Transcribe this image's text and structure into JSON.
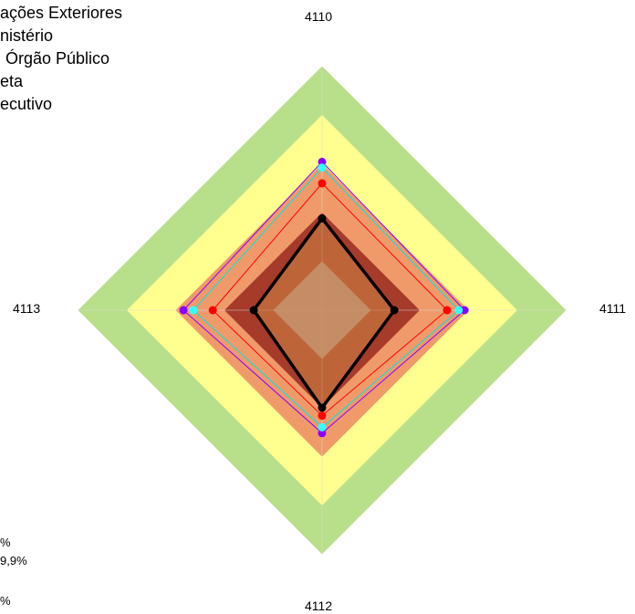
{
  "legend": [
    "ações Exteriores",
    "nistério",
    "Órgão Público",
    "eta",
    "ecutivo"
  ],
  "bottom_left_notes": [
    "%",
    "9,9%",
    "%"
  ],
  "chart_data": {
    "type": "radar",
    "axes": [
      "4110",
      "4111",
      "4112",
      "4113"
    ],
    "range": [
      0,
      100
    ],
    "bands": [
      {
        "upper": 25,
        "color": "#c0c0c0"
      },
      {
        "upper": 50,
        "color": "#a63b2a"
      },
      {
        "upper": 75,
        "color": "#f09a6a"
      },
      {
        "upper": 100,
        "color": "#ffff8f"
      },
      {
        "upper": 125,
        "color": "#b8e08a"
      }
    ],
    "series": [
      {
        "values": [
          76,
          73,
          63,
          71
        ],
        "color": "#8b00ff",
        "dot": "#8b00ff"
      },
      {
        "values": [
          73,
          70,
          60,
          66
        ],
        "color": "#00e5e5",
        "dot": "#33ffff"
      },
      {
        "values": [
          65,
          64,
          54,
          56
        ],
        "color": "#ff0000",
        "dot": "#ff0000"
      },
      {
        "values": [
          47,
          37,
          50,
          35
        ],
        "color": "#000000",
        "dot": "#000000",
        "fill": "#c8773f",
        "fillOpacity": 0.7
      }
    ]
  }
}
